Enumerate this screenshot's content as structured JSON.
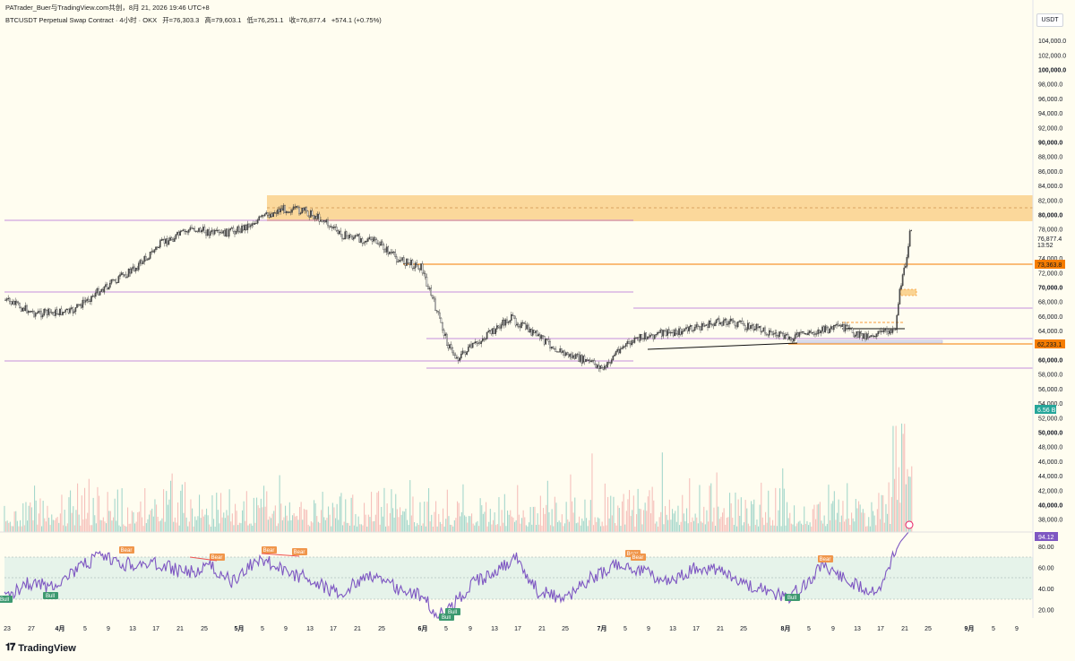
{
  "header": {
    "published_line": "PATrader_Buer与TradingView.com共创，8月 21, 2026 19:46 UTC+8",
    "symbol": "BTCUSDT Perpetual Swap Contract · 4小时 · OKX",
    "open": "开=76,303.3",
    "high": "高=79,603.1",
    "low": "低=76,251.1",
    "close": "收=76,877.4",
    "change": "+574.1 (+0.75%)",
    "currency": "USDT"
  },
  "price_axis": {
    "ticks": [
      "104,000.0",
      "102,000.0",
      "100,000.0",
      "98,000.0",
      "96,000.0",
      "94,000.0",
      "92,000.0",
      "90,000.0",
      "88,000.0",
      "86,000.0",
      "84,000.0",
      "82,000.0",
      "80,000.0",
      "78,000.0",
      "74,000.0",
      "72,000.0",
      "70,000.0",
      "68,000.0",
      "66,000.0",
      "64,000.0",
      "60,000.0",
      "58,000.0",
      "56,000.0",
      "54,000.0",
      "52,000.0",
      "50,000.0",
      "48,000.0",
      "46,000.0",
      "44,000.0",
      "42,000.0",
      "40,000.0",
      "38,000.0"
    ],
    "bold_ticks": [
      "100,000.0",
      "90,000.0",
      "80,000.0",
      "70,000.0",
      "60,000.0",
      "50,000.0",
      "40,000.0"
    ],
    "last_price": "76,877.4",
    "countdown": "13:52",
    "level_upper": "73,363.8",
    "level_lower": "62,233.1",
    "volume_value": "6.56 B"
  },
  "rsi_axis": {
    "ticks": [
      "80.00",
      "60.00",
      "40.00",
      "20.00"
    ],
    "current": "94.12"
  },
  "time_axis": [
    {
      "label": "23",
      "month": false
    },
    {
      "label": "27",
      "month": false
    },
    {
      "label": "4月",
      "month": true
    },
    {
      "label": "5",
      "month": false
    },
    {
      "label": "9",
      "month": false
    },
    {
      "label": "13",
      "month": false
    },
    {
      "label": "17",
      "month": false
    },
    {
      "label": "21",
      "month": false
    },
    {
      "label": "25",
      "month": false
    },
    {
      "label": "5月",
      "month": true
    },
    {
      "label": "5",
      "month": false
    },
    {
      "label": "9",
      "month": false
    },
    {
      "label": "13",
      "month": false
    },
    {
      "label": "17",
      "month": false
    },
    {
      "label": "21",
      "month": false
    },
    {
      "label": "25",
      "month": false
    },
    {
      "label": "6月",
      "month": true
    },
    {
      "label": "5",
      "month": false
    },
    {
      "label": "9",
      "month": false
    },
    {
      "label": "13",
      "month": false
    },
    {
      "label": "17",
      "month": false
    },
    {
      "label": "21",
      "month": false
    },
    {
      "label": "25",
      "month": false
    },
    {
      "label": "7月",
      "month": true
    },
    {
      "label": "5",
      "month": false
    },
    {
      "label": "9",
      "month": false
    },
    {
      "label": "13",
      "month": false
    },
    {
      "label": "17",
      "month": false
    },
    {
      "label": "21",
      "month": false
    },
    {
      "label": "25",
      "month": false
    },
    {
      "label": "8月",
      "month": true
    },
    {
      "label": "5",
      "month": false
    },
    {
      "label": "9",
      "month": false
    },
    {
      "label": "13",
      "month": false
    },
    {
      "label": "17",
      "month": false
    },
    {
      "label": "21",
      "month": false
    },
    {
      "label": "25",
      "month": false
    },
    {
      "label": "9月",
      "month": true
    },
    {
      "label": "5",
      "month": false
    },
    {
      "label": "9",
      "month": false
    }
  ],
  "rsi_tags": {
    "bear": "Bear",
    "bull": "Bull"
  },
  "footer": {
    "brand": "TradingView",
    "logo_icon": "tradingview-logo-icon"
  },
  "colors": {
    "up": "#26a69a",
    "down": "#ef5350",
    "candle": "#333333",
    "rsi": "#7e57c2",
    "zone": "#f7b955",
    "level": "#f57c00",
    "purple_line": "#9c27b0",
    "bear": "#f0964b",
    "bull": "#3d9970"
  }
}
